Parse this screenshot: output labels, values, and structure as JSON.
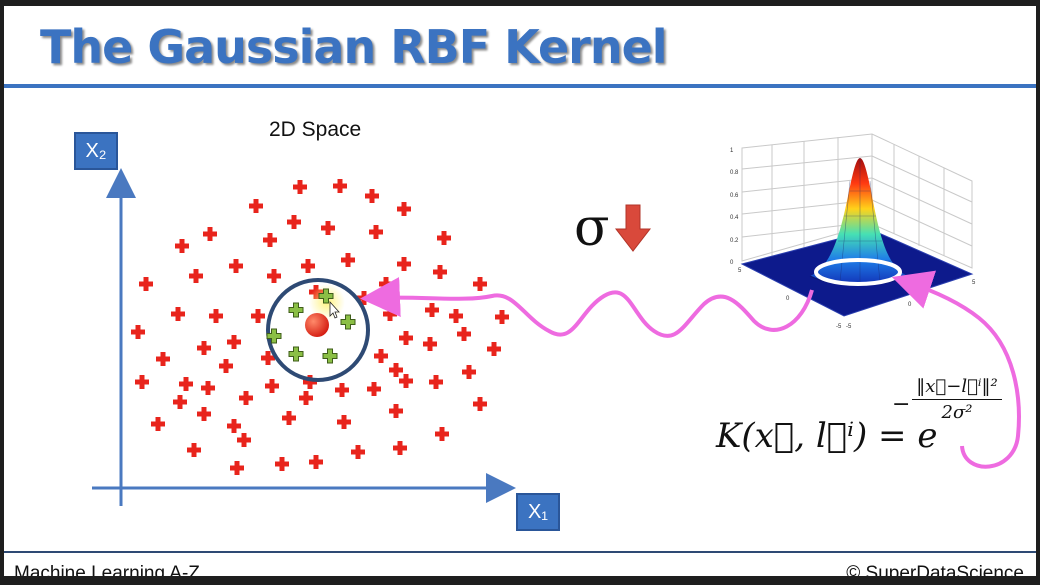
{
  "slide": {
    "title": "The Gaussian RBF Kernel",
    "space_caption": "2D Space",
    "axis_y_label": "X₂",
    "axis_x_label": "X₁",
    "sigma_symbol": "σ",
    "formula": {
      "lhs": "K(x⃗, l⃗ⁱ) = e",
      "exponent_numerator": "‖x⃗−l⃗ⁱ‖²",
      "exponent_denominator": "2σ²"
    },
    "plot3d_ticks": {
      "z": [
        "1",
        "0.8",
        "0.6",
        "0.4",
        "0.2",
        "0"
      ],
      "x": [
        "5",
        "0",
        "-5"
      ],
      "y": [
        "-5",
        "0",
        "5"
      ]
    }
  },
  "footer": {
    "left": "Machine Learning A-Z",
    "right": "© SuperDataScience"
  },
  "colors": {
    "title_blue": "#3b73c1",
    "red_plus": "#e8241c",
    "green_plus": "#7aa83a",
    "circle": "#2e4a74",
    "pink_arrow": "#ee6be0",
    "sigma_arrow": "#d9493b"
  }
}
